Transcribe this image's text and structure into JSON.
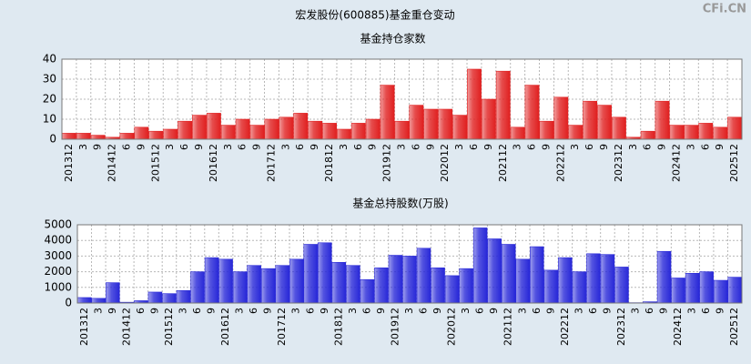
{
  "title": "宏发股份(600885)基金重仓变动",
  "watermark": "CFi.CN",
  "chart_data": [
    {
      "type": "bar",
      "title": "基金持仓家数",
      "color": "#e02020",
      "categories": [
        "201312",
        "3",
        "9",
        "201412",
        "6",
        "9",
        "201512",
        "3",
        "6",
        "9",
        "201612",
        "3",
        "6",
        "9",
        "201712",
        "3",
        "6",
        "9",
        "201812",
        "3",
        "6",
        "9",
        "201912",
        "3",
        "6",
        "9",
        "202012",
        "3",
        "6",
        "9",
        "202112",
        "3",
        "6",
        "9",
        "202212",
        "3",
        "6",
        "9",
        "202312",
        "3",
        "6",
        "9",
        "202412",
        "3",
        "6",
        "9",
        "202512"
      ],
      "values": [
        3,
        3,
        2,
        1,
        3,
        6,
        4,
        5,
        9,
        12,
        13,
        7,
        10,
        7,
        10,
        11,
        13,
        9,
        8,
        5,
        8,
        10,
        27,
        9,
        17,
        15,
        15,
        12,
        35,
        20,
        34,
        6,
        27,
        9,
        21,
        7,
        19,
        17,
        11,
        1,
        4,
        19,
        7,
        7,
        8,
        6,
        11
      ],
      "ylim": [
        0,
        40
      ],
      "yticks": [
        0,
        10,
        20,
        30,
        40
      ],
      "grid": true
    },
    {
      "type": "bar",
      "title": "基金总持股数(万股)",
      "color": "#2828d8",
      "categories": [
        "201312",
        "3",
        "9",
        "201412",
        "6",
        "9",
        "201512",
        "3",
        "6",
        "9",
        "201612",
        "3",
        "6",
        "9",
        "201712",
        "3",
        "6",
        "9",
        "201812",
        "3",
        "6",
        "9",
        "201912",
        "3",
        "6",
        "9",
        "202012",
        "3",
        "6",
        "9",
        "202112",
        "3",
        "6",
        "9",
        "202212",
        "3",
        "6",
        "9",
        "202312",
        "3",
        "6",
        "9",
        "202412",
        "3",
        "6",
        "9",
        "202512"
      ],
      "values": [
        350,
        300,
        1300,
        50,
        150,
        700,
        600,
        800,
        2000,
        2900,
        2800,
        2000,
        2400,
        2200,
        2400,
        2800,
        3750,
        3850,
        2600,
        2400,
        1500,
        2250,
        3050,
        3000,
        3500,
        2250,
        1750,
        2200,
        4800,
        4100,
        3750,
        2800,
        3600,
        2100,
        2900,
        2000,
        3150,
        3100,
        2300,
        20,
        80,
        3300,
        1600,
        1900,
        2000,
        1450,
        1650
      ],
      "ylim": [
        0,
        5000
      ],
      "yticks": [
        0,
        1000,
        2000,
        3000,
        4000,
        5000
      ],
      "grid": true
    }
  ]
}
